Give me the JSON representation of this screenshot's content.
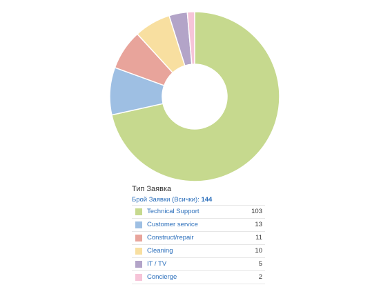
{
  "chart_data": {
    "type": "pie",
    "title": "Тип Заявка",
    "total_label": "Брой Заявки (Всички):",
    "total_value": "144",
    "categories": [
      "Technical Support",
      "Customer service",
      "Construct/repair",
      "Cleaning",
      "IT / TV",
      "Concierge"
    ],
    "values": [
      103,
      13,
      11,
      10,
      5,
      2
    ],
    "colors": [
      "#c6d98e",
      "#9ebfe3",
      "#e8a49b",
      "#f8dfa0",
      "#b3a4c8",
      "#f6c4d8"
    ],
    "legend": "below",
    "donut": true
  }
}
